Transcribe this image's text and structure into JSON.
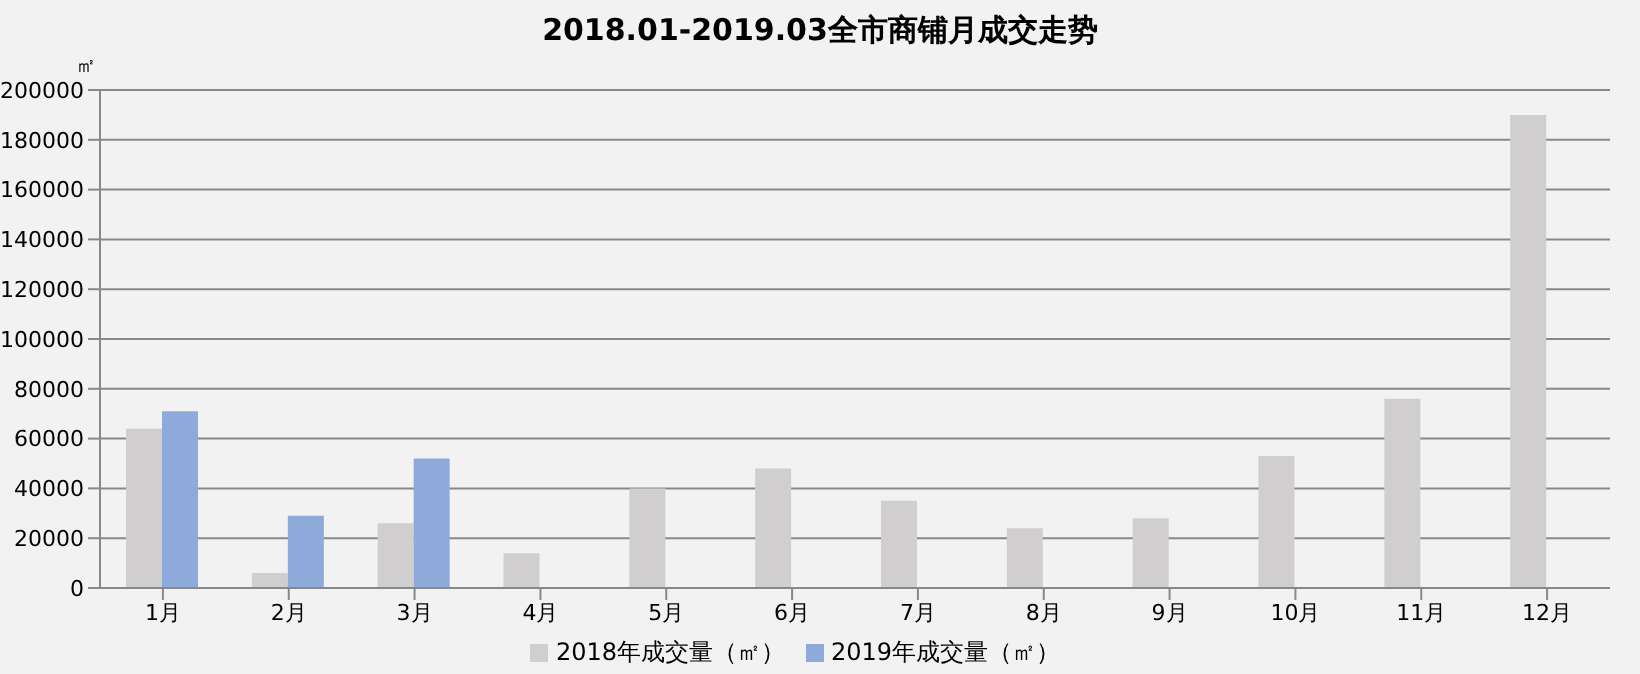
{
  "chart_data": {
    "type": "bar",
    "title": "2018.01-2019.03全市商铺月成交走势",
    "ylabel": "㎡",
    "categories": [
      "1月",
      "2月",
      "3月",
      "4月",
      "5月",
      "6月",
      "7月",
      "8月",
      "9月",
      "10月",
      "11月",
      "12月"
    ],
    "series": [
      {
        "name": "2018年成交量（㎡）",
        "color": "#d0cece",
        "values": [
          64000,
          6000,
          26000,
          14000,
          40000,
          48000,
          35000,
          24000,
          28000,
          53000,
          76000,
          190000
        ]
      },
      {
        "name": "2019年成交量（㎡）",
        "color": "#8eaadb",
        "values": [
          71000,
          29000,
          52000,
          null,
          null,
          null,
          null,
          null,
          null,
          null,
          null,
          null
        ]
      }
    ],
    "ylim": [
      0,
      200000
    ],
    "yticks": [
      0,
      20000,
      40000,
      60000,
      80000,
      100000,
      120000,
      140000,
      160000,
      180000,
      200000
    ],
    "grid": "y",
    "legend": "bottom"
  }
}
